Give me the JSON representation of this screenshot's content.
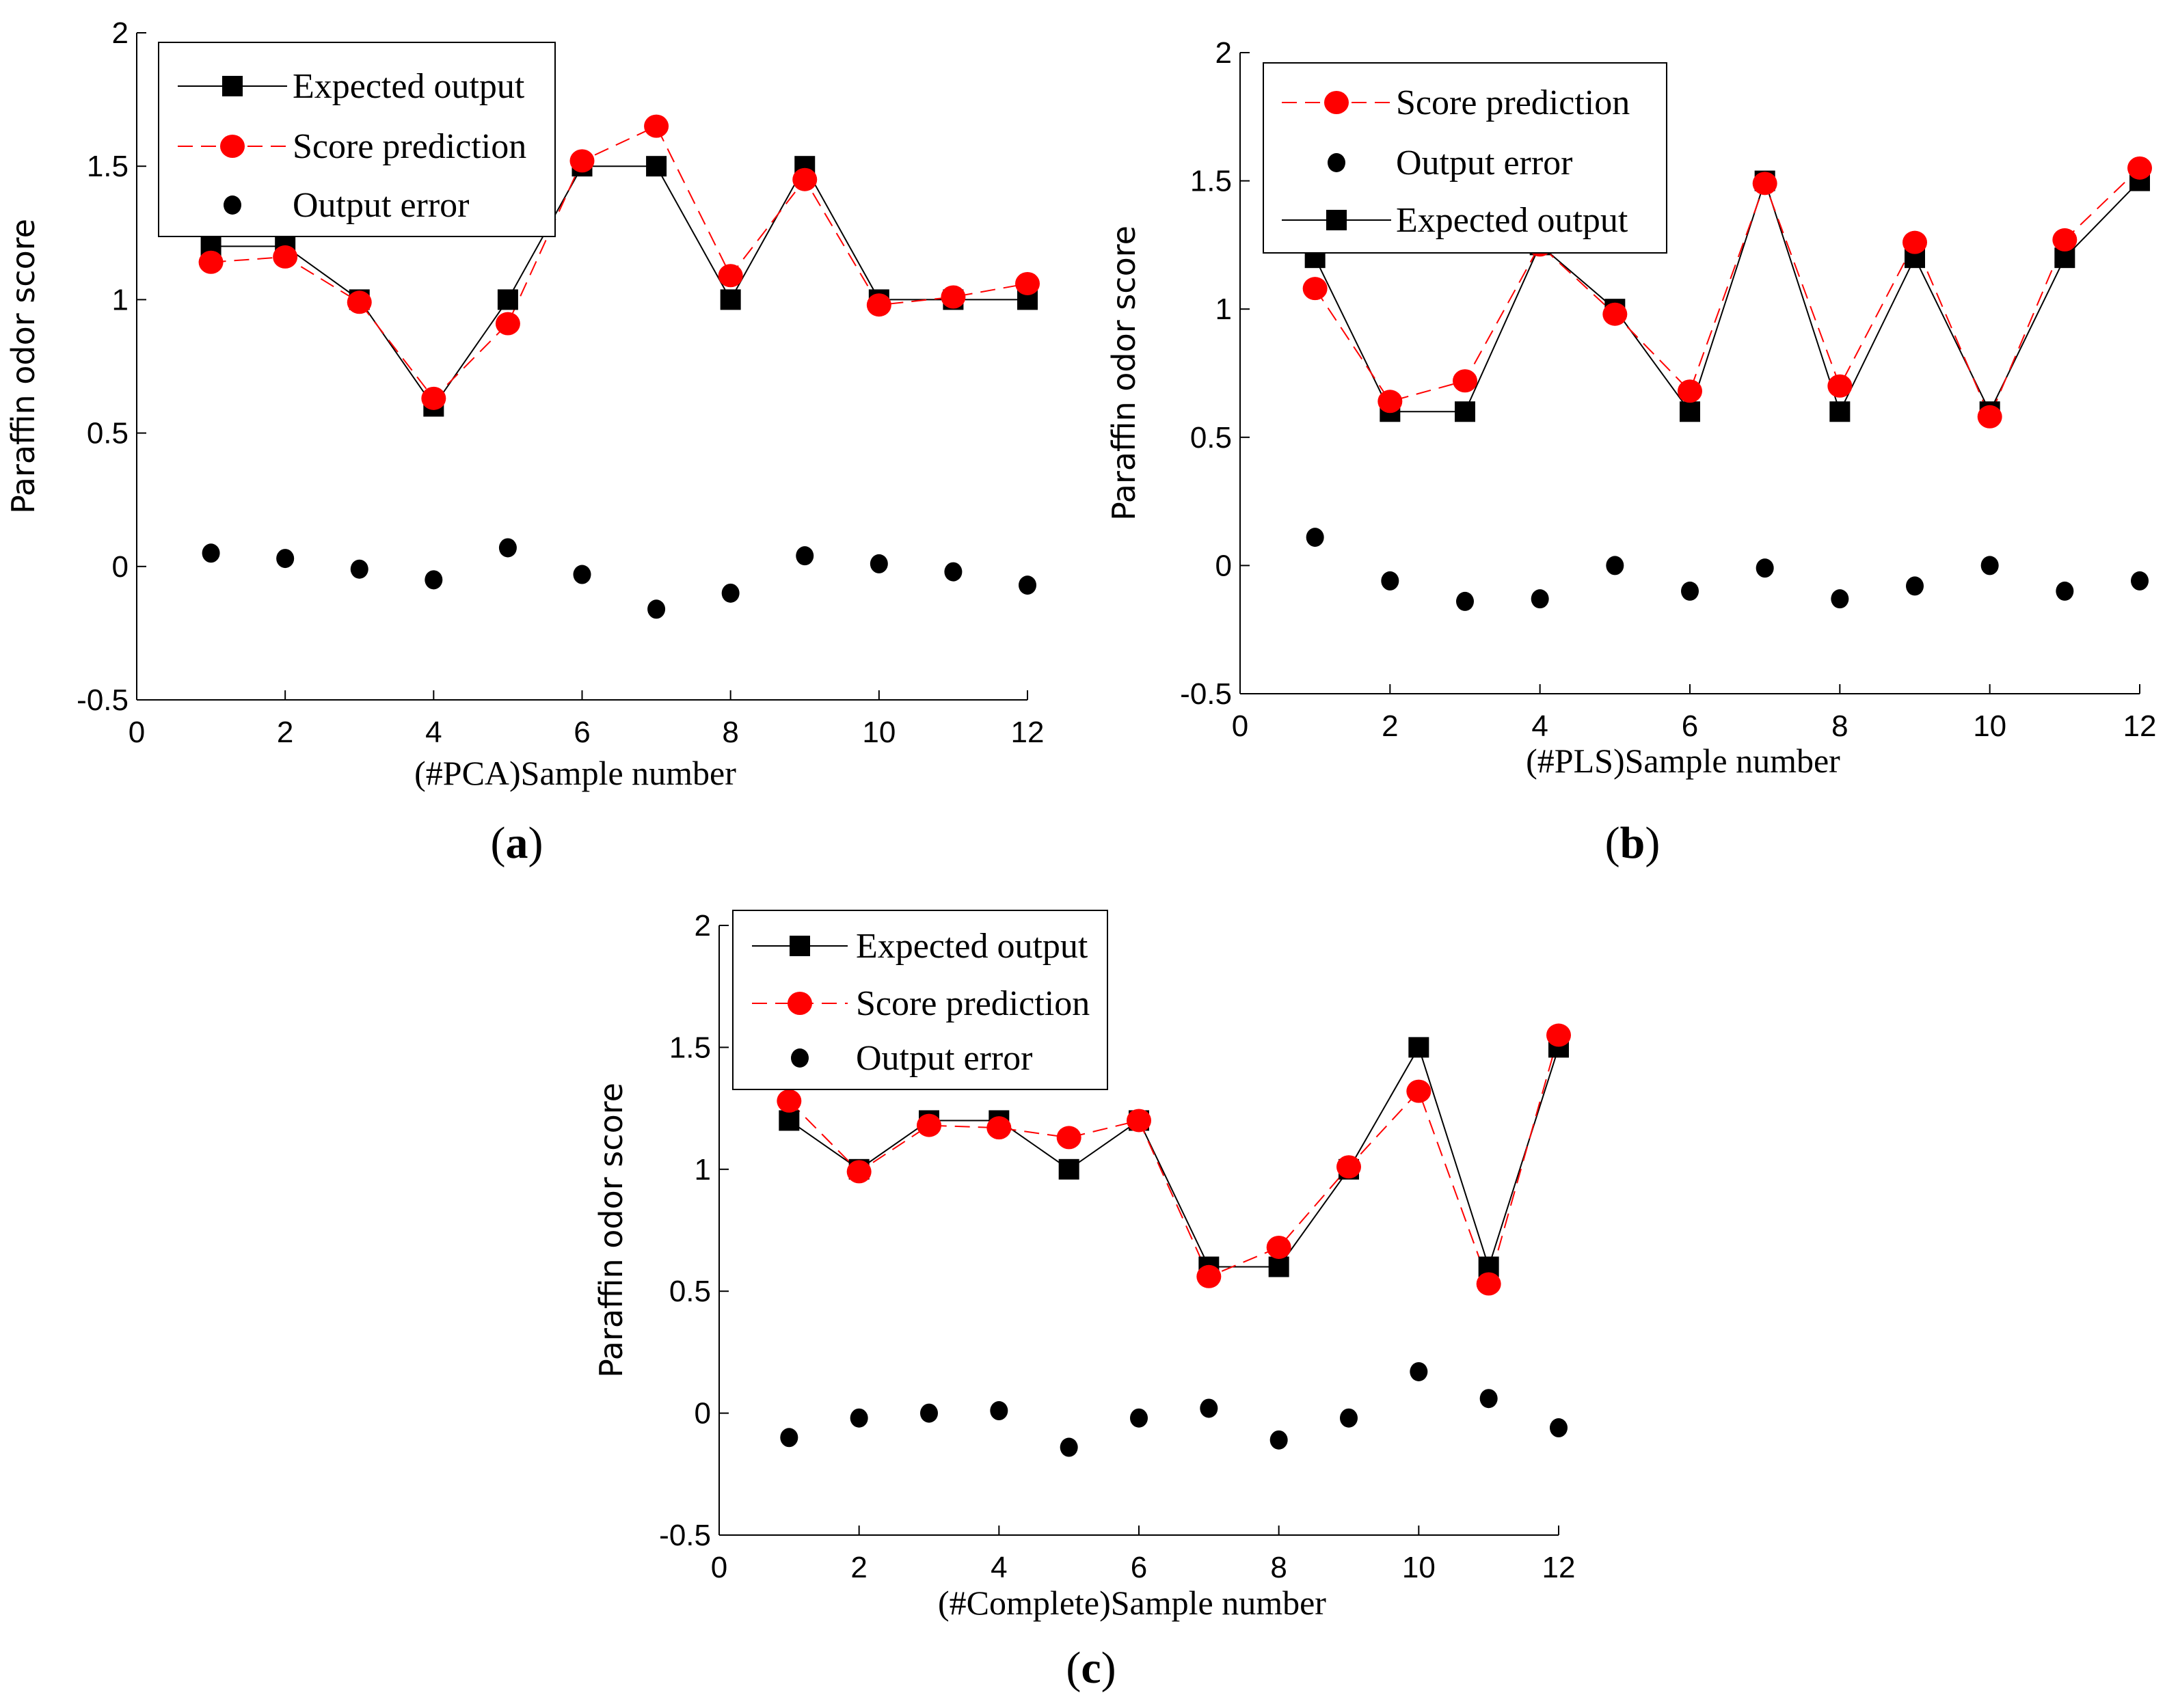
{
  "chart_data": [
    {
      "type": "line",
      "panel_label": "a",
      "title": "",
      "xlabel": "(#PCA)Sample number",
      "ylabel": "Paraffin odor score",
      "xlim": [
        0,
        12
      ],
      "ylim": [
        -0.5,
        2
      ],
      "xticks": [
        "0",
        "2",
        "4",
        "6",
        "8",
        "10",
        "12"
      ],
      "yticks": [
        "-0.5",
        "0",
        "0.5",
        "1",
        "1.5",
        "2"
      ],
      "legend_position": "top-left",
      "legend_order": [
        "expected",
        "prediction",
        "error"
      ],
      "x": [
        1,
        2,
        3,
        4,
        5,
        6,
        7,
        8,
        9,
        10,
        11,
        12
      ],
      "series": [
        {
          "key": "expected",
          "name": "Expected output",
          "values": [
            1.2,
            1.2,
            1.0,
            0.6,
            1.0,
            1.5,
            1.5,
            1.0,
            1.5,
            1.0,
            1.0,
            1.0
          ]
        },
        {
          "key": "prediction",
          "name": "Score prediction",
          "values": [
            1.14,
            1.16,
            0.99,
            0.63,
            0.91,
            1.52,
            1.65,
            1.09,
            1.45,
            0.98,
            1.01,
            1.06
          ]
        },
        {
          "key": "error",
          "name": "Output error",
          "values": [
            0.05,
            0.03,
            -0.01,
            -0.05,
            0.07,
            -0.03,
            -0.16,
            -0.1,
            0.04,
            0.01,
            -0.02,
            -0.07
          ]
        }
      ]
    },
    {
      "type": "line",
      "panel_label": "b",
      "title": "",
      "xlabel": "(#PLS)Sample number",
      "ylabel": "Paraffin odor score",
      "xlim": [
        0,
        12
      ],
      "ylim": [
        -0.5,
        2
      ],
      "xticks": [
        "0",
        "2",
        "4",
        "6",
        "8",
        "10",
        "12"
      ],
      "yticks": [
        "-0.5",
        "0",
        "0.5",
        "1",
        "1.5",
        "2"
      ],
      "legend_position": "top-left",
      "legend_order": [
        "prediction",
        "error",
        "expected"
      ],
      "x": [
        1,
        2,
        3,
        4,
        5,
        6,
        7,
        8,
        9,
        10,
        11,
        12
      ],
      "series": [
        {
          "key": "expected",
          "name": "Expected output",
          "values": [
            1.2,
            0.6,
            0.6,
            1.25,
            1.0,
            0.6,
            1.5,
            0.6,
            1.2,
            0.6,
            1.2,
            1.5
          ]
        },
        {
          "key": "prediction",
          "name": "Score prediction",
          "values": [
            1.08,
            0.64,
            0.72,
            1.25,
            0.98,
            0.68,
            1.49,
            0.7,
            1.26,
            0.58,
            1.27,
            1.55
          ]
        },
        {
          "key": "error",
          "name": "Output error",
          "values": [
            0.11,
            -0.06,
            -0.14,
            -0.13,
            0.0,
            -0.1,
            -0.01,
            -0.13,
            -0.08,
            0.0,
            -0.1,
            -0.06
          ]
        }
      ]
    },
    {
      "type": "line",
      "panel_label": "c",
      "title": "",
      "xlabel": "(#Complete)Sample number",
      "ylabel": "Paraffin odor score",
      "xlim": [
        0,
        12
      ],
      "ylim": [
        -0.5,
        2
      ],
      "xticks": [
        "0",
        "2",
        "4",
        "6",
        "8",
        "10",
        "12"
      ],
      "yticks": [
        "-0.5",
        "0",
        "0.5",
        "1",
        "1.5",
        "2"
      ],
      "legend_position": "top-left",
      "legend_order": [
        "expected",
        "prediction",
        "error"
      ],
      "x": [
        1,
        2,
        3,
        4,
        5,
        6,
        7,
        8,
        9,
        10,
        11,
        12
      ],
      "series": [
        {
          "key": "expected",
          "name": "Expected output",
          "values": [
            1.2,
            1.0,
            1.2,
            1.2,
            1.0,
            1.2,
            0.6,
            0.6,
            1.0,
            1.5,
            0.6,
            1.5
          ]
        },
        {
          "key": "prediction",
          "name": "Score prediction",
          "values": [
            1.28,
            0.99,
            1.18,
            1.17,
            1.13,
            1.2,
            0.56,
            0.68,
            1.01,
            1.32,
            0.53,
            1.55
          ]
        },
        {
          "key": "error",
          "name": "Output error",
          "values": [
            -0.1,
            -0.02,
            0.0,
            0.01,
            -0.14,
            -0.02,
            0.02,
            -0.11,
            -0.02,
            0.17,
            0.06,
            -0.06
          ]
        }
      ]
    }
  ],
  "colors": {
    "expected": "#000000",
    "prediction": "#ff0000",
    "error": "#000000"
  }
}
